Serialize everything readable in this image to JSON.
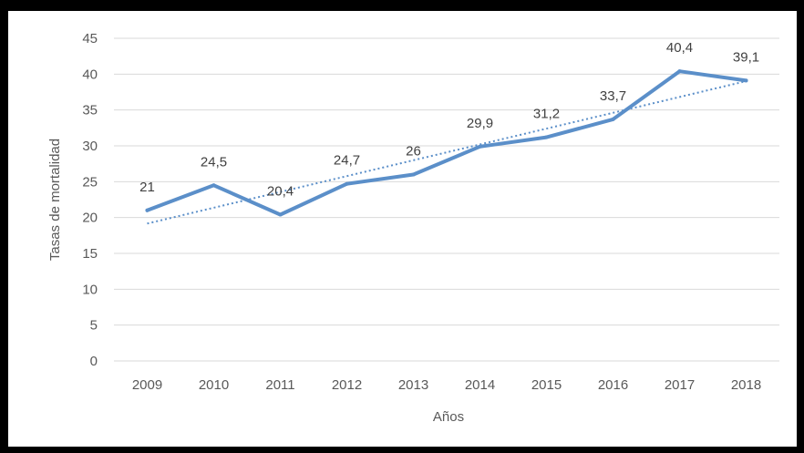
{
  "chart_data": {
    "type": "line",
    "title": "",
    "xlabel": "Años",
    "ylabel": "Tasas de mortalidad",
    "categories": [
      "2009",
      "2010",
      "2011",
      "2012",
      "2013",
      "2014",
      "2015",
      "2016",
      "2017",
      "2018"
    ],
    "series": [
      {
        "values": [
          21,
          24.5,
          20.4,
          24.7,
          26,
          29.9,
          31.2,
          33.7,
          40.4,
          39.1
        ],
        "data_labels": [
          "21",
          "24,5",
          "20,4",
          "24,7",
          "26",
          "29,9",
          "31,2",
          "33,7",
          "40,4",
          "39,1"
        ],
        "color": "#5b8fc9"
      }
    ],
    "trendline": {
      "type": "linear",
      "style": "dotted",
      "color": "#5b8fc9"
    },
    "ylim": [
      0,
      45
    ],
    "yticks": [
      "0",
      "5",
      "10",
      "15",
      "20",
      "25",
      "30",
      "35",
      "40",
      "45"
    ],
    "grid": true,
    "legend": "none"
  }
}
